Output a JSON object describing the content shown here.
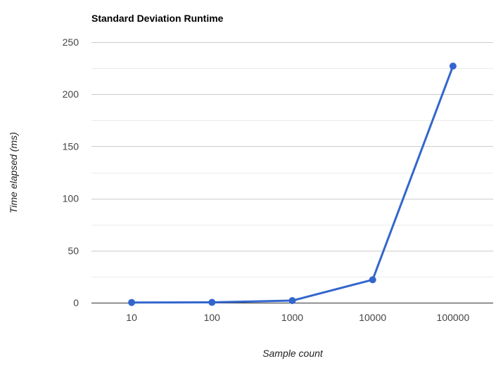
{
  "chart_data": {
    "type": "line",
    "title": "Standard Deviation Runtime",
    "xlabel": "Sample count",
    "ylabel": "Time elapsed (ms)",
    "categories": [
      "10",
      "100",
      "1000",
      "10000",
      "100000"
    ],
    "series": [
      {
        "values": [
          0.2,
          0.3,
          2,
          22,
          227
        ]
      }
    ],
    "ylim": [
      0,
      250
    ],
    "yticks": [
      "0",
      "50",
      "100",
      "150",
      "200",
      "250"
    ],
    "ytick_values": [
      0,
      50,
      100,
      150,
      200,
      250
    ],
    "grid": true,
    "line_color": "#3366cc",
    "grid_color": "#cccccc",
    "minor_grid_color": "#ebebeb",
    "axis_color": "#333333"
  }
}
